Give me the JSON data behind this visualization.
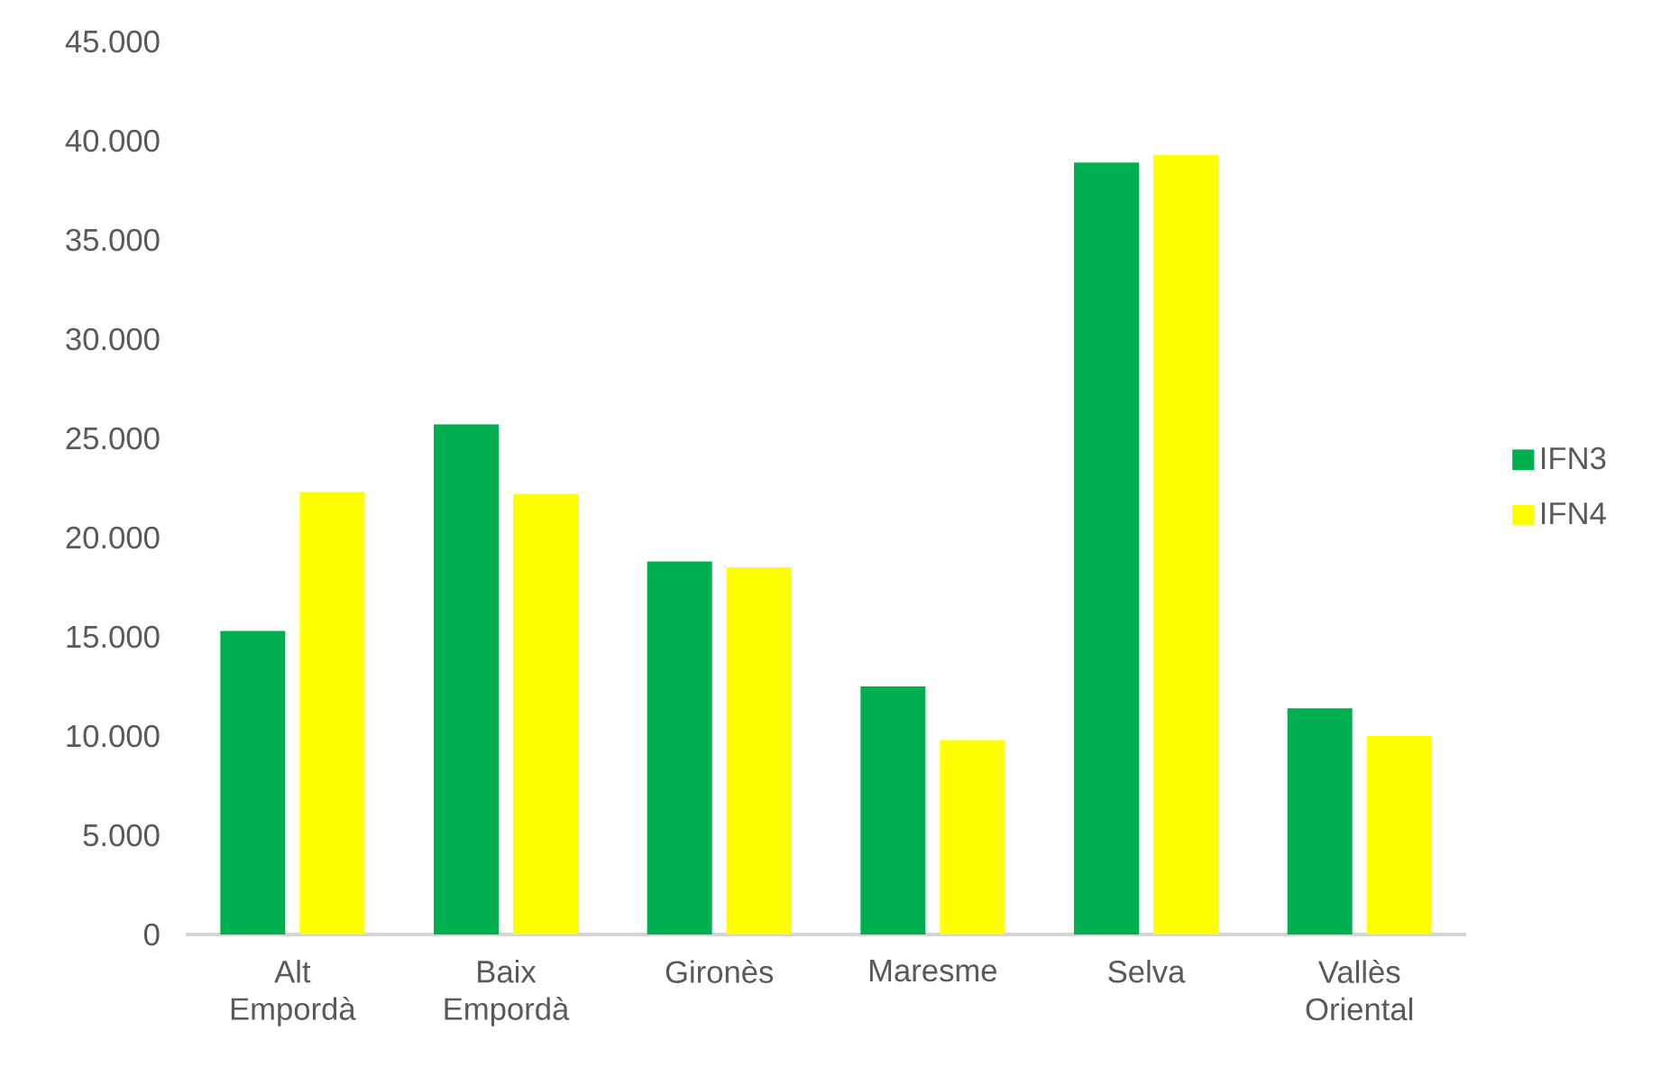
{
  "chart_data": {
    "type": "bar",
    "categories": [
      "Alt Empordà",
      "Baix Empordà",
      "Gironès",
      "Maresme",
      "Selva",
      "Vallès Oriental"
    ],
    "series": [
      {
        "name": "IFN3",
        "color": "#00b050",
        "values": [
          15300,
          25700,
          18800,
          12500,
          38900,
          11400
        ]
      },
      {
        "name": "IFN4",
        "color": "#ffff00",
        "values": [
          22300,
          22200,
          18500,
          9800,
          39300,
          10000
        ]
      }
    ],
    "ylim": [
      0,
      45000
    ],
    "yticks": [
      0,
      {
        "value": 5000,
        "label": "5.000"
      },
      {
        "value": 10000,
        "label": "10.000"
      },
      {
        "value": 15000,
        "label": "15.000"
      },
      {
        "value": 20000,
        "label": "20.000"
      },
      {
        "value": 25000,
        "label": "25.000"
      },
      {
        "value": 30000,
        "label": "30.000"
      },
      {
        "value": 35000,
        "label": "35.000"
      },
      {
        "value": 40000,
        "label": "40.000"
      },
      {
        "value": 45000,
        "label": "45.000"
      }
    ],
    "grid": false,
    "legend": "right"
  }
}
